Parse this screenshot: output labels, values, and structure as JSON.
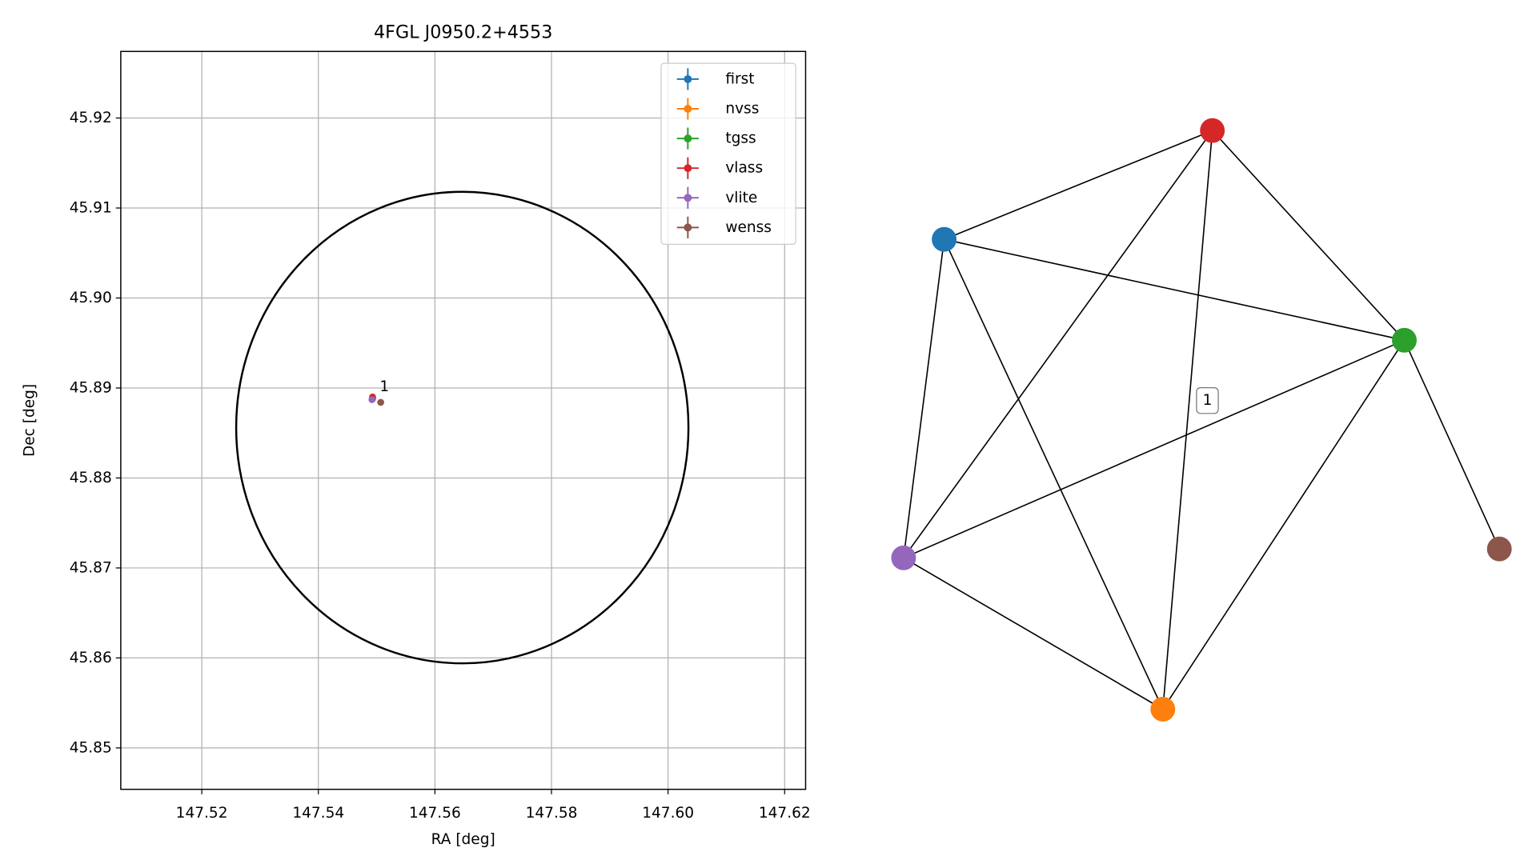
{
  "chart_data": [
    {
      "type": "scatter",
      "title": "4FGL J0950.2+4553",
      "x_label": "RA [deg]",
      "y_label": "Dec [deg]",
      "xlim": [
        147.5061,
        147.6236
      ],
      "ylim": [
        45.8454,
        45.9274
      ],
      "xticks": [
        147.52,
        147.54,
        147.56,
        147.58,
        {
          "value": 147.6,
          "label": "147.60"
        },
        147.62
      ],
      "yticks": [
        45.85,
        45.86,
        45.87,
        45.88,
        45.89,
        {
          "value": 45.9,
          "label": "45.90"
        },
        45.91,
        45.92
      ],
      "grid": true,
      "legend": "upper right",
      "series": [
        {
          "name": "first",
          "color": "#1f77b4",
          "x": [
            147.5493
          ],
          "y": [
            45.8888
          ]
        },
        {
          "name": "nvss",
          "color": "#ff7f0e",
          "x": [
            147.5493
          ],
          "y": [
            45.8888
          ]
        },
        {
          "name": "tgss",
          "color": "#2ca02c",
          "x": [
            147.5493
          ],
          "y": [
            45.8888
          ]
        },
        {
          "name": "vlass",
          "color": "#d62728",
          "x": [
            147.5493
          ],
          "y": [
            45.889
          ]
        },
        {
          "name": "vlite",
          "color": "#9467bd",
          "x": [
            147.5492
          ],
          "y": [
            45.8887
          ]
        },
        {
          "name": "wenss",
          "color": "#8c564b",
          "x": [
            147.5507
          ],
          "y": [
            45.8884
          ]
        }
      ],
      "circle": {
        "ra": 147.5647,
        "dec": 45.8856,
        "ra_radius": 0.0388,
        "dec_radius": 0.0262
      },
      "annotations": [
        {
          "text": "1",
          "x": 147.5507,
          "y": 45.8892
        }
      ]
    },
    {
      "type": "network",
      "nodes": [
        {
          "color": "#1f77b4"
        },
        {
          "color": "#ff7f0e"
        },
        {
          "color": "#2ca02c"
        },
        {
          "color": "#d62728"
        },
        {
          "color": "#9467bd"
        },
        {
          "color": "#8c564b"
        }
      ],
      "edges": [
        [
          0,
          3
        ],
        [
          0,
          2
        ],
        [
          0,
          4
        ],
        [
          0,
          1
        ],
        [
          3,
          4
        ],
        [
          3,
          1
        ],
        [
          3,
          2
        ],
        [
          2,
          4
        ],
        [
          2,
          1
        ],
        [
          2,
          5
        ],
        [
          4,
          1
        ]
      ],
      "edge_labels": [
        "1"
      ]
    }
  ]
}
